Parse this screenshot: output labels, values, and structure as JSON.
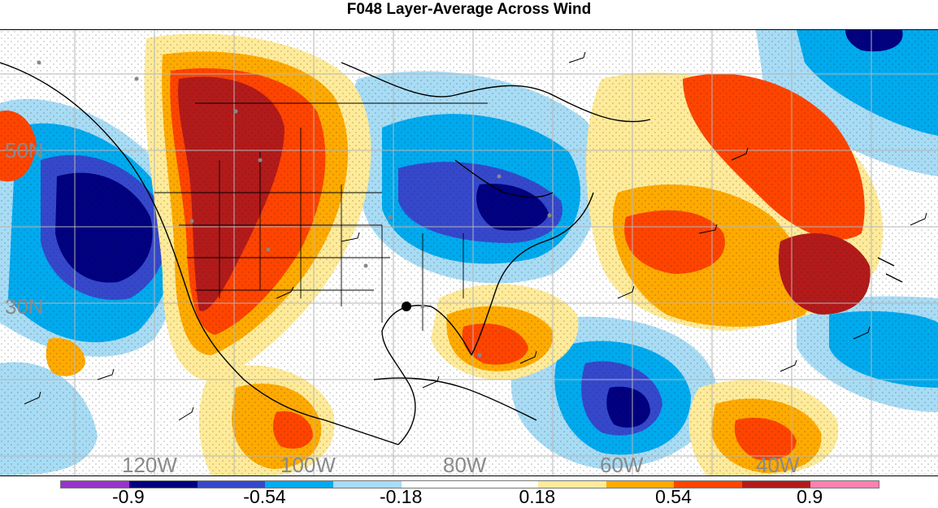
{
  "title": "F048 Layer-Average Across Wind",
  "map": {
    "lat_labels": [
      "50N",
      "30N"
    ],
    "lon_labels": [
      "120W",
      "100W",
      "80W",
      "60W",
      "40W"
    ]
  },
  "colorbar": {
    "colors": [
      "#9933cc",
      "#000080",
      "#3548cc",
      "#00aaee",
      "#a8dcf5",
      "#ffffff",
      "#ffffff",
      "#ffeb99",
      "#ffaa00",
      "#ff4400",
      "#b31a1a",
      "#ff80b0"
    ],
    "tick_labels": [
      "-0.9",
      "-0.54",
      "-0.18",
      "0.18",
      "0.54",
      "0.9"
    ]
  }
}
